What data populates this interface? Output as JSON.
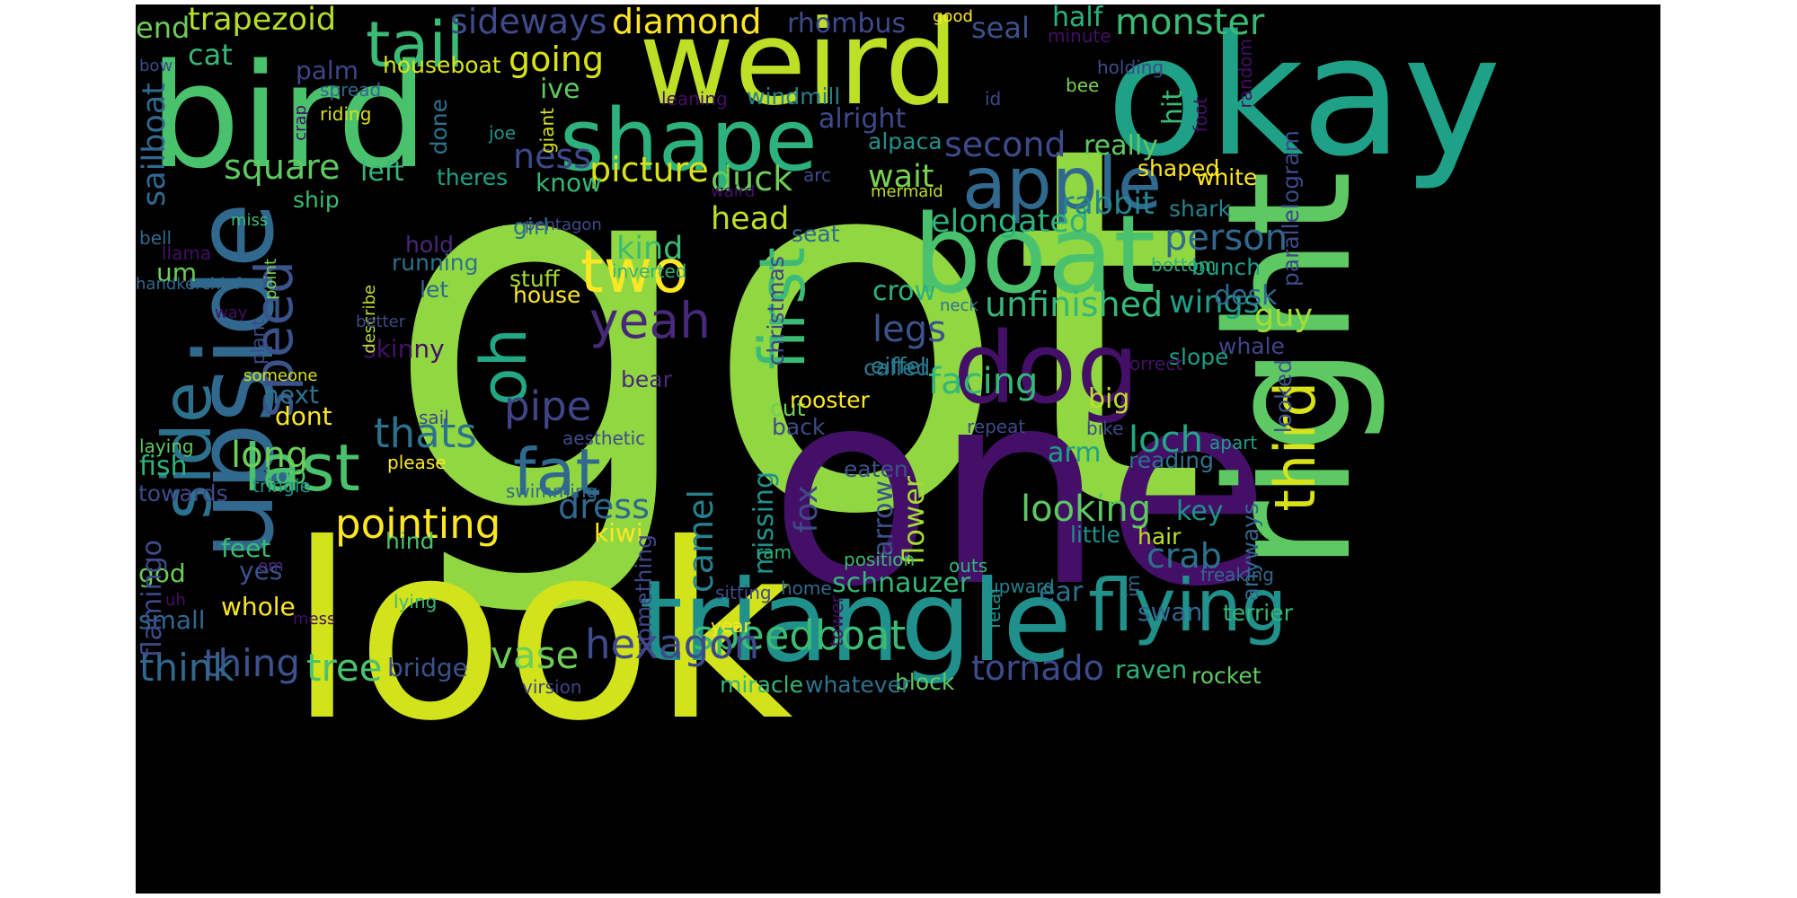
{
  "palette": [
    "#440154",
    "#482878",
    "#3e4a89",
    "#31688e",
    "#26828e",
    "#1f9e89",
    "#35b779",
    "#6ece58",
    "#b5de2b",
    "#fde725"
  ],
  "words": [
    {
      "text": "got",
      "color": "#91d742"
    },
    {
      "text": "one",
      "color": "#440f66"
    },
    {
      "text": "look",
      "color": "#d2e21b"
    },
    {
      "text": "okay",
      "color": "#1fa187"
    },
    {
      "text": "bird",
      "color": "#4ac16d"
    },
    {
      "text": "weird",
      "color": "#bddf26"
    },
    {
      "text": "right",
      "color": "#5ec962"
    },
    {
      "text": "triangle",
      "color": "#20908d"
    },
    {
      "text": "upside",
      "color": "#31688e"
    },
    {
      "text": "boat",
      "color": "#4ac16d"
    },
    {
      "text": "dog",
      "color": "#440f66"
    },
    {
      "text": "shape",
      "color": "#2db27d"
    },
    {
      "text": "apple",
      "color": "#31688e"
    },
    {
      "text": "flying",
      "color": "#21918c"
    },
    {
      "text": "side",
      "color": "#2c728e"
    },
    {
      "text": "first",
      "color": "#3bbb75"
    },
    {
      "text": "speed",
      "color": "#3b528b"
    },
    {
      "text": "tail",
      "color": "#3bbb75"
    },
    {
      "text": "fat",
      "color": "#31688e"
    },
    {
      "text": "two",
      "color": "#fde725"
    },
    {
      "text": "last",
      "color": "#4ac16d"
    },
    {
      "text": "oh",
      "color": "#22a884"
    },
    {
      "text": "third",
      "color": "#d8e219"
    },
    {
      "text": "yeah",
      "color": "#482878"
    },
    {
      "text": "pointing",
      "color": "#fde725"
    },
    {
      "text": "speedboat",
      "color": "#3bbb75"
    },
    {
      "text": "hexagon",
      "color": "#3e4a89"
    },
    {
      "text": "thats",
      "color": "#2c728e"
    },
    {
      "text": "tree",
      "color": "#4ac16d"
    },
    {
      "text": "thing",
      "color": "#3b528b"
    },
    {
      "text": "think",
      "color": "#31688e"
    },
    {
      "text": "vase",
      "color": "#6ece58"
    },
    {
      "text": "pipe",
      "color": "#414487"
    },
    {
      "text": "long",
      "color": "#6ece58"
    },
    {
      "text": "square",
      "color": "#5ec962"
    },
    {
      "text": "looking",
      "color": "#5ec962"
    },
    {
      "text": "person",
      "color": "#31688e"
    },
    {
      "text": "monster",
      "color": "#3bbb75"
    },
    {
      "text": "diamond",
      "color": "#fde725"
    },
    {
      "text": "sideways",
      "color": "#3e4a89"
    },
    {
      "text": "trapezoid",
      "color": "#b5de2b"
    },
    {
      "text": "going",
      "color": "#d8e219"
    },
    {
      "text": "picture",
      "color": "#d8e219"
    },
    {
      "text": "duck",
      "color": "#6ece58"
    },
    {
      "text": "second",
      "color": "#3e4a89"
    },
    {
      "text": "elongated",
      "color": "#2db27d"
    },
    {
      "text": "unfinished",
      "color": "#35b779"
    },
    {
      "text": "legs",
      "color": "#3b528b"
    },
    {
      "text": "facing",
      "color": "#35b779"
    },
    {
      "text": "loch",
      "color": "#22a884"
    },
    {
      "text": "tornado",
      "color": "#3e4a89"
    },
    {
      "text": "camel",
      "color": "#26828e"
    },
    {
      "text": "dress",
      "color": "#31688e"
    },
    {
      "text": "crab",
      "color": "#2c728e"
    },
    {
      "text": "rabbit",
      "color": "#26828e"
    },
    {
      "text": "kind",
      "color": "#3bbb75"
    },
    {
      "text": "ness",
      "color": "#3e4a89"
    },
    {
      "text": "head",
      "color": "#bddf26"
    },
    {
      "text": "wait",
      "color": "#7ad151"
    },
    {
      "text": "crow",
      "color": "#2db27d"
    },
    {
      "text": "guy",
      "color": "#a5db36"
    },
    {
      "text": "wings",
      "color": "#1f9e89"
    },
    {
      "text": "desk",
      "color": "#31688e"
    },
    {
      "text": "big",
      "color": "#bddf26"
    },
    {
      "text": "arm",
      "color": "#1fa187"
    },
    {
      "text": "key",
      "color": "#21918c"
    },
    {
      "text": "fox",
      "color": "#3e4a89"
    },
    {
      "text": "missing",
      "color": "#21918c"
    },
    {
      "text": "flower",
      "color": "#a5db36"
    },
    {
      "text": "sailboat",
      "color": "#31688e"
    },
    {
      "text": "cat",
      "color": "#35b779"
    },
    {
      "text": "tail-end",
      "text2": "end",
      "color": "#6ece58"
    },
    {
      "text": "seal",
      "color": "#3b528b"
    },
    {
      "text": "half",
      "color": "#2db27d"
    },
    {
      "text": "rhombus",
      "color": "#3e4a89"
    },
    {
      "text": "houseboat",
      "color": "#d8e219"
    },
    {
      "text": "palm",
      "color": "#414487"
    },
    {
      "text": "ive",
      "color": "#5ec962"
    },
    {
      "text": "windmill",
      "color": "#26828e"
    },
    {
      "text": "alright",
      "color": "#3e4a89"
    },
    {
      "text": "really",
      "color": "#5ec962"
    },
    {
      "text": "left",
      "color": "#35b779"
    },
    {
      "text": "theres",
      "color": "#1fa187"
    },
    {
      "text": "know",
      "color": "#35b779"
    },
    {
      "text": "done",
      "color": "#2c728e"
    },
    {
      "text": "alpaca",
      "color": "#21918c"
    },
    {
      "text": "hit",
      "color": "#3bbb75"
    },
    {
      "text": "shaped",
      "color": "#fde725"
    },
    {
      "text": "white",
      "color": "#fde725"
    },
    {
      "text": "parallelogram",
      "color": "#3e4a89"
    },
    {
      "text": "shark",
      "color": "#26828e"
    },
    {
      "text": "bunch",
      "color": "#1f9e89"
    },
    {
      "text": "bottom",
      "color": "#2db27d"
    },
    {
      "text": "whale",
      "color": "#414487"
    },
    {
      "text": "looked",
      "color": "#3b528b"
    },
    {
      "text": "slope",
      "color": "#1f9e89"
    },
    {
      "text": "reading",
      "color": "#2c728e"
    },
    {
      "text": "apart",
      "color": "#1f9e89"
    },
    {
      "text": "terrier",
      "color": "#35b779"
    },
    {
      "text": "swan",
      "color": "#31688e"
    },
    {
      "text": "rocket",
      "color": "#5ec962"
    },
    {
      "text": "raven",
      "color": "#2db27d"
    },
    {
      "text": "hair",
      "color": "#bddf26"
    },
    {
      "text": "little",
      "color": "#21918c"
    },
    {
      "text": "anyways",
      "color": "#31688e"
    },
    {
      "text": "ear",
      "color": "#2c728e"
    },
    {
      "text": "fetal",
      "color": "#21918c"
    },
    {
      "text": "im",
      "color": "#31688e"
    },
    {
      "text": "schnauzer",
      "color": "#35b779"
    },
    {
      "text": "block",
      "color": "#5ec962"
    },
    {
      "text": "whatever",
      "color": "#2c728e"
    },
    {
      "text": "miracle",
      "color": "#35b779"
    },
    {
      "text": "bridge",
      "color": "#3b528b"
    },
    {
      "text": "kiwi",
      "color": "#fde725"
    },
    {
      "text": "hind",
      "color": "#4ac16d"
    },
    {
      "text": "feet",
      "color": "#3bbb75"
    },
    {
      "text": "yes",
      "color": "#3b528b"
    },
    {
      "text": "god",
      "color": "#6ece58"
    },
    {
      "text": "whole",
      "color": "#fde725"
    },
    {
      "text": "small",
      "color": "#31688e"
    },
    {
      "text": "flamingo",
      "color": "#3e4a89"
    },
    {
      "text": "fish",
      "color": "#2db27d"
    },
    {
      "text": "towards",
      "color": "#3e4a89"
    },
    {
      "text": "top",
      "color": "#4ac16d"
    },
    {
      "text": "dont",
      "color": "#fde725"
    },
    {
      "text": "next",
      "color": "#2c728e"
    },
    {
      "text": "skinny",
      "color": "#440f66"
    },
    {
      "text": "running",
      "color": "#2c728e"
    },
    {
      "text": "hold",
      "color": "#482878"
    },
    {
      "text": "let",
      "color": "#31688e"
    },
    {
      "text": "um",
      "color": "#6ece58"
    },
    {
      "text": "stuff",
      "color": "#a5db36"
    },
    {
      "text": "house",
      "color": "#fde725"
    },
    {
      "text": "girl",
      "color": "#2c728e"
    },
    {
      "text": "ship",
      "color": "#3bbb75"
    },
    {
      "text": "plant",
      "color": "#3e4a89"
    },
    {
      "text": "point",
      "color": "#7ad151"
    },
    {
      "text": "someone",
      "color": "#d8e219"
    },
    {
      "text": "please",
      "color": "#fde725"
    },
    {
      "text": "tringle",
      "color": "#21918c"
    },
    {
      "text": "laying",
      "color": "#5ec962"
    },
    {
      "text": "sail",
      "color": "#3e4a89"
    },
    {
      "text": "aesthetic",
      "color": "#3e4a89"
    },
    {
      "text": "swimming",
      "color": "#31688e"
    },
    {
      "text": "something",
      "color": "#414487"
    },
    {
      "text": "virsion",
      "color": "#414487"
    },
    {
      "text": "cut",
      "color": "#6ece58"
    },
    {
      "text": "back",
      "color": "#3e4a89"
    },
    {
      "text": "eaten",
      "color": "#3b528b"
    },
    {
      "text": "rooster",
      "color": "#fde725"
    },
    {
      "text": "arrow",
      "color": "#3b528b"
    },
    {
      "text": "christmas",
      "color": "#414487"
    },
    {
      "text": "seat",
      "color": "#31688e"
    },
    {
      "text": "eiffel",
      "color": "#26828e"
    },
    {
      "text": "called",
      "color": "#2c728e"
    },
    {
      "text": "bear",
      "color": "#482878"
    },
    {
      "text": "inverted",
      "color": "#2db27d"
    },
    {
      "text": "arc",
      "color": "#3e4a89"
    },
    {
      "text": "waird",
      "color": "#440f66"
    },
    {
      "text": "pentagon",
      "color": "#3e4a89"
    },
    {
      "text": "mermaid",
      "color": "#bddf26"
    },
    {
      "text": "position",
      "color": "#3bbb75"
    },
    {
      "text": "ram",
      "color": "#2db27d"
    },
    {
      "text": "sitting",
      "color": "#3e4a89"
    },
    {
      "text": "home",
      "color": "#31688e"
    },
    {
      "text": "tower",
      "color": "#440f66"
    },
    {
      "text": "year",
      "color": "#fde725"
    },
    {
      "text": "outs",
      "color": "#35b779"
    },
    {
      "text": "upward",
      "color": "#26828e"
    },
    {
      "text": "freaking",
      "color": "#31688e"
    },
    {
      "text": "correct",
      "color": "#440f66"
    },
    {
      "text": "repeat",
      "color": "#3e4a89"
    },
    {
      "text": "bike",
      "color": "#3e4a89"
    },
    {
      "text": "neck",
      "color": "#2c728e"
    },
    {
      "text": "lying",
      "color": "#3bbb75"
    },
    {
      "text": "mess",
      "color": "#440f66"
    },
    {
      "text": "uh",
      "color": "#440f66"
    },
    {
      "text": "em",
      "color": "#482878"
    },
    {
      "text": "describe",
      "color": "#bddf26"
    },
    {
      "text": "bell",
      "color": "#31688e"
    },
    {
      "text": "llama",
      "color": "#440f66"
    },
    {
      "text": "handkerchief",
      "color": "#31688e"
    },
    {
      "text": "way",
      "color": "#440f66"
    },
    {
      "text": "better",
      "color": "#3e4a89"
    },
    {
      "text": "miss",
      "color": "#3bbb75"
    },
    {
      "text": "crap",
      "color": "#440f66"
    },
    {
      "text": "riding",
      "color": "#d8e219"
    },
    {
      "text": "spread",
      "color": "#31688e"
    },
    {
      "text": "joe",
      "color": "#21918c"
    },
    {
      "text": "giant",
      "color": "#d8e219"
    },
    {
      "text": "leaning",
      "color": "#440f66"
    },
    {
      "text": "id",
      "color": "#3e4a89"
    },
    {
      "text": "bee",
      "color": "#7ad151"
    },
    {
      "text": "holding",
      "color": "#3e4a89"
    },
    {
      "text": "foot",
      "color": "#440f66"
    },
    {
      "text": "minute",
      "color": "#440f66"
    },
    {
      "text": "random",
      "color": "#440f66"
    },
    {
      "text": "good",
      "color": "#fde725"
    },
    {
      "text": "bow",
      "color": "#3e4a89"
    }
  ]
}
